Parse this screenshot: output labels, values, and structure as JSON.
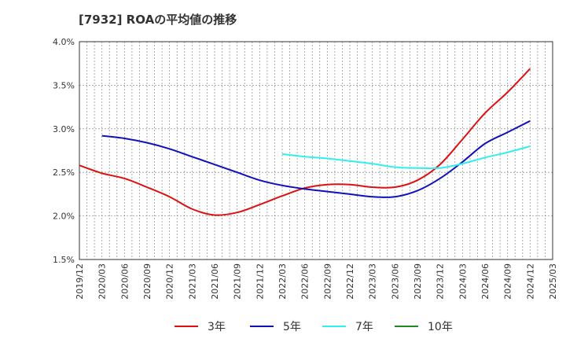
{
  "chart_data": {
    "type": "line",
    "title": "[7932]  ROAの平均値の推移",
    "xlabel": "",
    "ylabel": "",
    "ylim": [
      1.5,
      4.0
    ],
    "y_ticks": [
      "1.5%",
      "2.0%",
      "2.5%",
      "3.0%",
      "3.5%",
      "4.0%"
    ],
    "categories": [
      "2019/12",
      "2020/03",
      "2020/06",
      "2020/09",
      "2020/12",
      "2021/03",
      "2021/06",
      "2021/09",
      "2021/12",
      "2022/03",
      "2022/06",
      "2022/09",
      "2022/12",
      "2023/03",
      "2023/06",
      "2023/09",
      "2023/12",
      "2024/03",
      "2024/06",
      "2024/09",
      "2024/12",
      "2025/03"
    ],
    "grid": true,
    "legend_position": "bottom",
    "series": [
      {
        "name": "3年",
        "color": "#dd1111",
        "values": [
          2.58,
          2.49,
          2.43,
          2.33,
          2.22,
          2.08,
          2.01,
          2.04,
          2.13,
          2.23,
          2.32,
          2.36,
          2.36,
          2.33,
          2.33,
          2.41,
          2.59,
          2.88,
          3.18,
          3.42,
          3.69,
          null
        ]
      },
      {
        "name": "5年",
        "color": "#1111bb",
        "values": [
          null,
          2.92,
          2.89,
          2.84,
          2.77,
          2.68,
          2.59,
          2.5,
          2.41,
          2.35,
          2.31,
          2.28,
          2.25,
          2.22,
          2.22,
          2.29,
          2.43,
          2.62,
          2.83,
          2.96,
          3.09,
          null
        ]
      },
      {
        "name": "7年",
        "color": "#33eeee",
        "values": [
          null,
          null,
          null,
          null,
          null,
          null,
          null,
          null,
          null,
          2.71,
          2.68,
          2.66,
          2.63,
          2.6,
          2.56,
          2.55,
          2.55,
          2.6,
          2.67,
          2.73,
          2.8,
          null
        ]
      },
      {
        "name": "10年",
        "color": "#228822",
        "values": [
          null,
          null,
          null,
          null,
          null,
          null,
          null,
          null,
          null,
          null,
          null,
          null,
          null,
          null,
          null,
          null,
          null,
          null,
          null,
          null,
          null,
          null
        ]
      }
    ]
  }
}
